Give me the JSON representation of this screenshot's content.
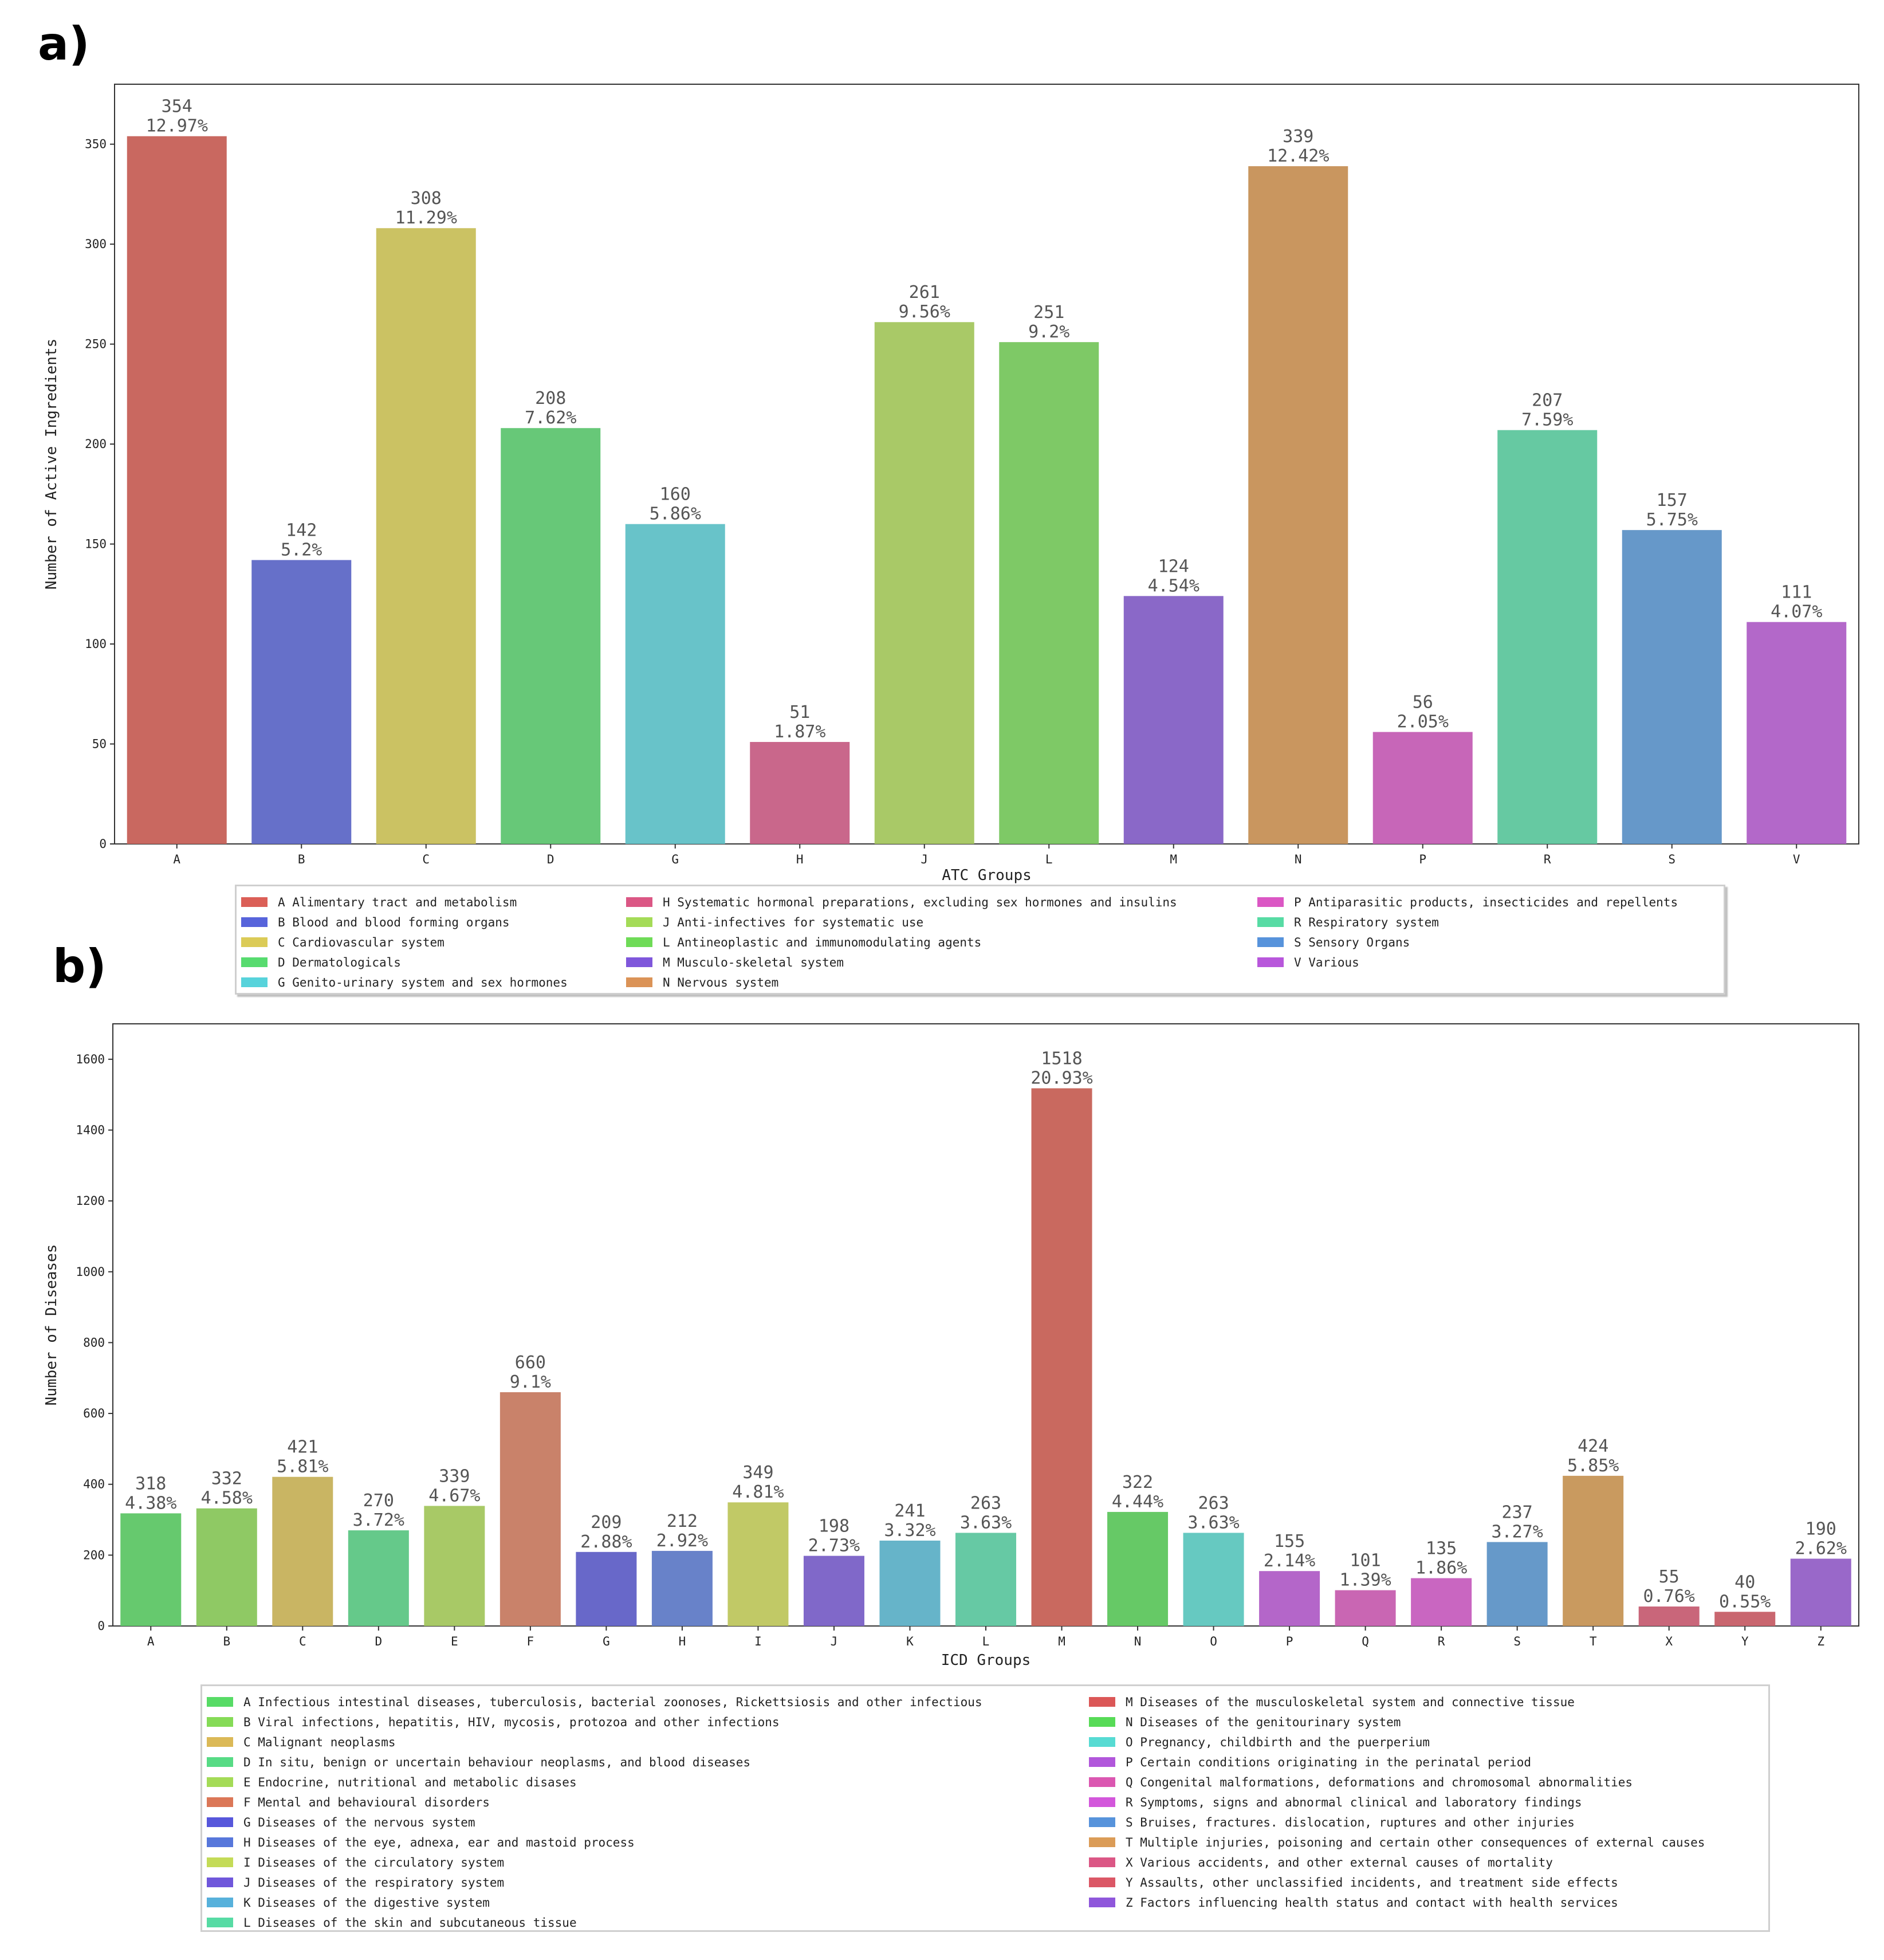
{
  "panels": {
    "a": {
      "label": "a)"
    },
    "b": {
      "label": "b)"
    }
  },
  "chart_data": [
    {
      "type": "bar",
      "title": "",
      "xlabel": "ATC Groups",
      "ylabel": "Number of Active Ingredients",
      "ylim": [
        0,
        380
      ],
      "yticks": [
        0,
        50,
        100,
        150,
        200,
        250,
        300,
        350
      ],
      "categories": [
        "A",
        "B",
        "C",
        "D",
        "G",
        "H",
        "J",
        "L",
        "M",
        "N",
        "P",
        "R",
        "S",
        "V"
      ],
      "values": [
        354,
        142,
        308,
        208,
        160,
        51,
        261,
        251,
        124,
        339,
        56,
        207,
        157,
        111
      ],
      "percent_labels": [
        "12.97%",
        "5.2%",
        "11.29%",
        "7.62%",
        "5.86%",
        "1.87%",
        "9.56%",
        "9.2%",
        "4.54%",
        "12.42%",
        "2.05%",
        "7.59%",
        "5.75%",
        "4.07%"
      ],
      "colors": [
        "#c96860",
        "#6670c9",
        "#cbc263",
        "#67c878",
        "#68c3c9",
        "#c9678b",
        "#a9c967",
        "#7ec966",
        "#8a68c8",
        "#c9965f",
        "#c766b8",
        "#66c9a2",
        "#6698c9",
        "#b368c9"
      ],
      "legend": [
        {
          "text": "A Alimentary tract and metabolism",
          "color": "#db5f57"
        },
        {
          "text": "B Blood and blood forming organs",
          "color": "#5764db"
        },
        {
          "text": "C Cardiovascular system",
          "color": "#dbcb57"
        },
        {
          "text": "D Dermatologicals",
          "color": "#57db6f"
        },
        {
          "text": "G Genito-urinary system and sex hormones",
          "color": "#57d3db"
        },
        {
          "text": "H Systematic hormonal preparations, excluding sex hormones and insulins",
          "color": "#db5785"
        },
        {
          "text": "J Anti-infectives for systematic use",
          "color": "#a4db57"
        },
        {
          "text": "L Antineoplastic and immunomodulating agents",
          "color": "#6fdb57"
        },
        {
          "text": "M Musculo-skeletal system",
          "color": "#7f57db"
        },
        {
          "text": "N Nervous system",
          "color": "#db9357"
        },
        {
          "text": "P Antiparasitic products, insecticides and repellents",
          "color": "#db57c4"
        },
        {
          "text": "R Respiratory system",
          "color": "#57dba4"
        },
        {
          "text": "S Sensory Organs",
          "color": "#5793db"
        },
        {
          "text": "V Various",
          "color": "#b857db"
        }
      ]
    },
    {
      "type": "bar",
      "title": "",
      "xlabel": "ICD Groups",
      "ylabel": "Number of Diseases",
      "ylim": [
        0,
        1700
      ],
      "yticks": [
        0,
        200,
        400,
        600,
        800,
        1000,
        1200,
        1400,
        1600
      ],
      "categories": [
        "A",
        "B",
        "C",
        "D",
        "E",
        "F",
        "G",
        "H",
        "I",
        "J",
        "K",
        "L",
        "M",
        "N",
        "O",
        "P",
        "Q",
        "R",
        "S",
        "T",
        "X",
        "Y",
        "Z"
      ],
      "values": [
        318,
        332,
        421,
        270,
        339,
        660,
        209,
        212,
        349,
        198,
        241,
        263,
        1518,
        322,
        263,
        155,
        101,
        135,
        237,
        424,
        55,
        40,
        190
      ],
      "percent_labels": [
        "4.38%",
        "4.58%",
        "5.81%",
        "3.72%",
        "4.67%",
        "9.1%",
        "2.88%",
        "2.92%",
        "4.81%",
        "2.73%",
        "3.32%",
        "3.63%",
        "20.93%",
        "4.44%",
        "3.63%",
        "2.14%",
        "1.39%",
        "1.86%",
        "3.27%",
        "5.85%",
        "0.76%",
        "0.55%",
        "2.62%"
      ],
      "colors": [
        "#66c96e",
        "#8fc964",
        "#c9b563",
        "#65c98a",
        "#a8c966",
        "#c9826a",
        "#6868c9",
        "#6882c9",
        "#c1c966",
        "#8068c9",
        "#66b4c9",
        "#66c9a4",
        "#c9695f",
        "#66c966",
        "#66c9c1",
        "#b466c9",
        "#c966b3",
        "#c966c1",
        "#6699c9",
        "#c99a5f",
        "#c9667a",
        "#c9666f",
        "#9968c9"
      ],
      "legend": [
        {
          "text": "A Infectious intestinal diseases, tuberculosis, bacterial zoonoses, Rickettsiosis and other infectious",
          "color": "#57db66"
        },
        {
          "text": "B Viral infections, hepatitis, HIV, mycosis, protozoa and other infections",
          "color": "#85db57"
        },
        {
          "text": "C Malignant neoplasms",
          "color": "#dbb957"
        },
        {
          "text": "D In situ, benign or uncertain behaviour neoplasms, and blood diseases",
          "color": "#57db85"
        },
        {
          "text": "E Endocrine, nutritional and metabolic disases",
          "color": "#a4db57"
        },
        {
          "text": "F Mental and behavioural disorders",
          "color": "#db7757"
        },
        {
          "text": "G Diseases of the nervous system",
          "color": "#5757db"
        },
        {
          "text": "H Diseases of the eye, adnexa, ear and mastoid process",
          "color": "#5777db"
        },
        {
          "text": "I Diseases of the circulatory system",
          "color": "#c4db57"
        },
        {
          "text": "J Diseases of the respiratory system",
          "color": "#6f57db"
        },
        {
          "text": "K Diseases of the digestive system",
          "color": "#57b1db"
        },
        {
          "text": "L Diseases of the skin and subcutaneous tissue",
          "color": "#57dba4"
        },
        {
          "text": "M Diseases of the musculoskeletal system and connective tissue",
          "color": "#db5757"
        },
        {
          "text": "N Diseases of the genitourinary system",
          "color": "#57db57"
        },
        {
          "text": "O Pregnancy, childbirth and the puerperium",
          "color": "#57dbd3"
        },
        {
          "text": "P Certain conditions originating in the perinatal period",
          "color": "#b157db"
        },
        {
          "text": "Q Congenital malformations, deformations and chromosomal abnormalities",
          "color": "#db57b1"
        },
        {
          "text": "R Symptoms, signs and abnormal clinical and laboratory findings",
          "color": "#d357db"
        },
        {
          "text": "S Bruises, fractures. dislocation, ruptures and other injuries",
          "color": "#5793db"
        },
        {
          "text": "T Multiple injuries, poisoning and certain other consequences of external causes",
          "color": "#db9c57"
        },
        {
          "text": "X Various accidents, and other external causes of mortality",
          "color": "#db5785"
        },
        {
          "text": "Y Assaults, other unclassified incidents, and treatment side effects",
          "color": "#db5766"
        },
        {
          "text": "Z Factors influencing health status and contact with health services",
          "color": "#8f57db"
        }
      ]
    }
  ]
}
